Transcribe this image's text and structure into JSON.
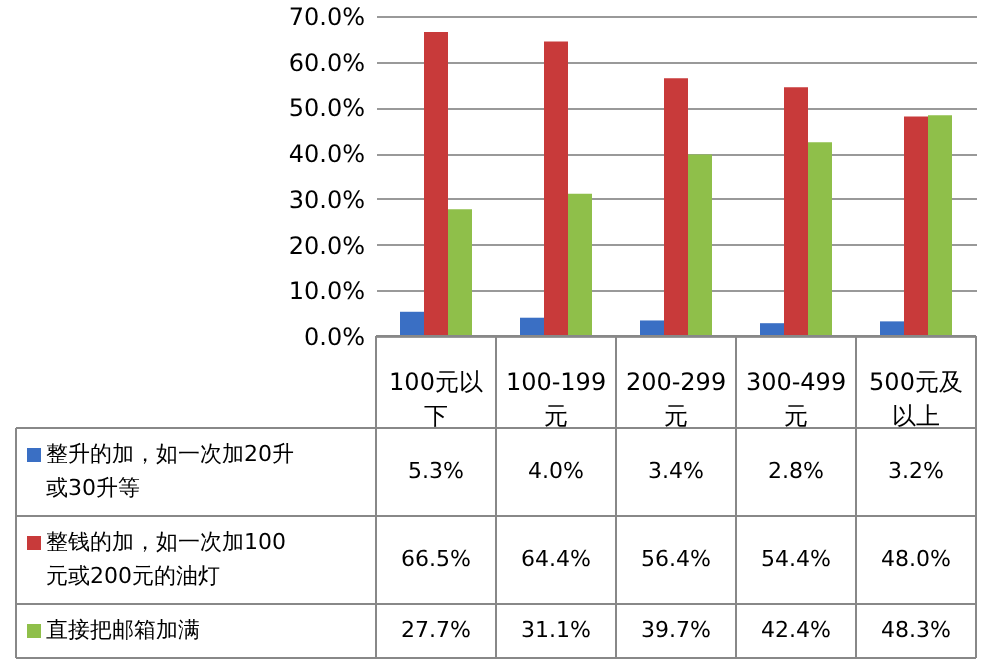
{
  "chart_data": {
    "type": "bar",
    "categories": [
      "100元以下",
      "100-199元",
      "200-299元",
      "300-499元",
      "500元及以上"
    ],
    "series": [
      {
        "name": "整升的加，如一次加20升或30升等",
        "color": "#3a6fc4",
        "values": [
          5.3,
          4.0,
          3.4,
          2.8,
          3.2
        ],
        "value_labels": [
          "5.3%",
          "4.0%",
          "3.4%",
          "2.8%",
          "3.2%"
        ]
      },
      {
        "name": "整钱的加，如一次加100元或200元的油灯",
        "color": "#c83a3a",
        "values": [
          66.5,
          64.4,
          56.4,
          54.4,
          48.0
        ],
        "value_labels": [
          "66.5%",
          "64.4%",
          "56.4%",
          "54.4%",
          "48.0%"
        ]
      },
      {
        "name": "直接把邮箱加满",
        "color": "#8fbf4a",
        "values": [
          27.7,
          31.1,
          39.7,
          42.4,
          48.3
        ],
        "value_labels": [
          "27.7%",
          "31.1%",
          "39.7%",
          "42.4%",
          "48.3%"
        ]
      }
    ],
    "ylim": [
      0,
      70
    ],
    "yticks": [
      {
        "value": 0,
        "label": "0.0%"
      },
      {
        "value": 10,
        "label": "10.0%"
      },
      {
        "value": 20,
        "label": "20.0%"
      },
      {
        "value": 30,
        "label": "30.0%"
      },
      {
        "value": 40,
        "label": "40.0%"
      },
      {
        "value": 50,
        "label": "50.0%"
      },
      {
        "value": 60,
        "label": "60.0%"
      },
      {
        "value": 70,
        "label": "70.0%"
      }
    ],
    "grid": "y",
    "legend": "bottom left"
  }
}
